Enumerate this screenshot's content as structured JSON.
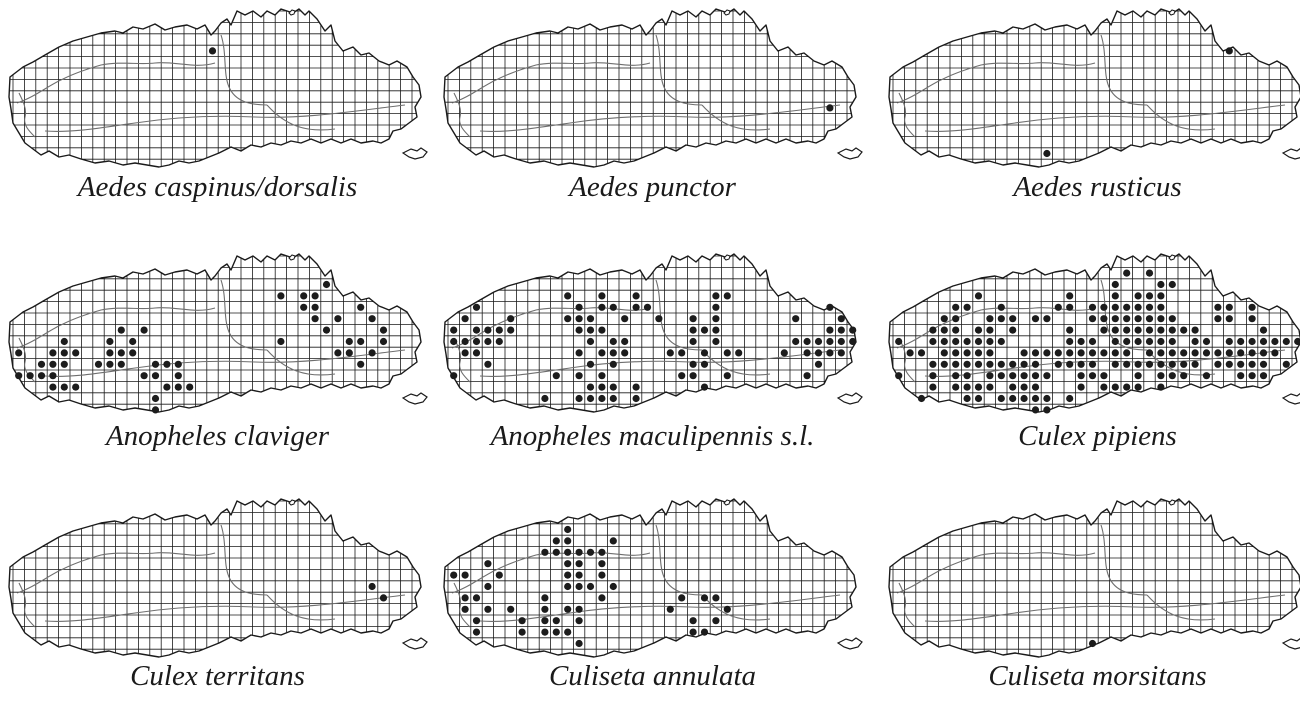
{
  "figure": {
    "map_style": {
      "grid_color": "#1a1a1a",
      "outline_color": "#1a1a1a",
      "boundary_line_color": "#6e6e6e",
      "dot_color": "#1c1c1c",
      "background": "#ffffff"
    },
    "panels": [
      {
        "species": "Aedes caspinus/dorsalis",
        "occupied_squares_approx": 1
      },
      {
        "species": "Aedes punctor",
        "occupied_squares_approx": 1
      },
      {
        "species": "Aedes rusticus",
        "occupied_squares_approx": 2
      },
      {
        "species": "Anopheles claviger",
        "occupied_squares_approx": 56
      },
      {
        "species": "Anopheles maculipennis s.l.",
        "occupied_squares_approx": 95
      },
      {
        "species": "Culex pipiens",
        "occupied_squares_approx": 190
      },
      {
        "species": "Culex territans",
        "occupied_squares_approx": 2
      },
      {
        "species": "Culiseta annulata",
        "occupied_squares_approx": 55
      },
      {
        "species": "Culiseta morsitans",
        "occupied_squares_approx": 1
      }
    ]
  }
}
